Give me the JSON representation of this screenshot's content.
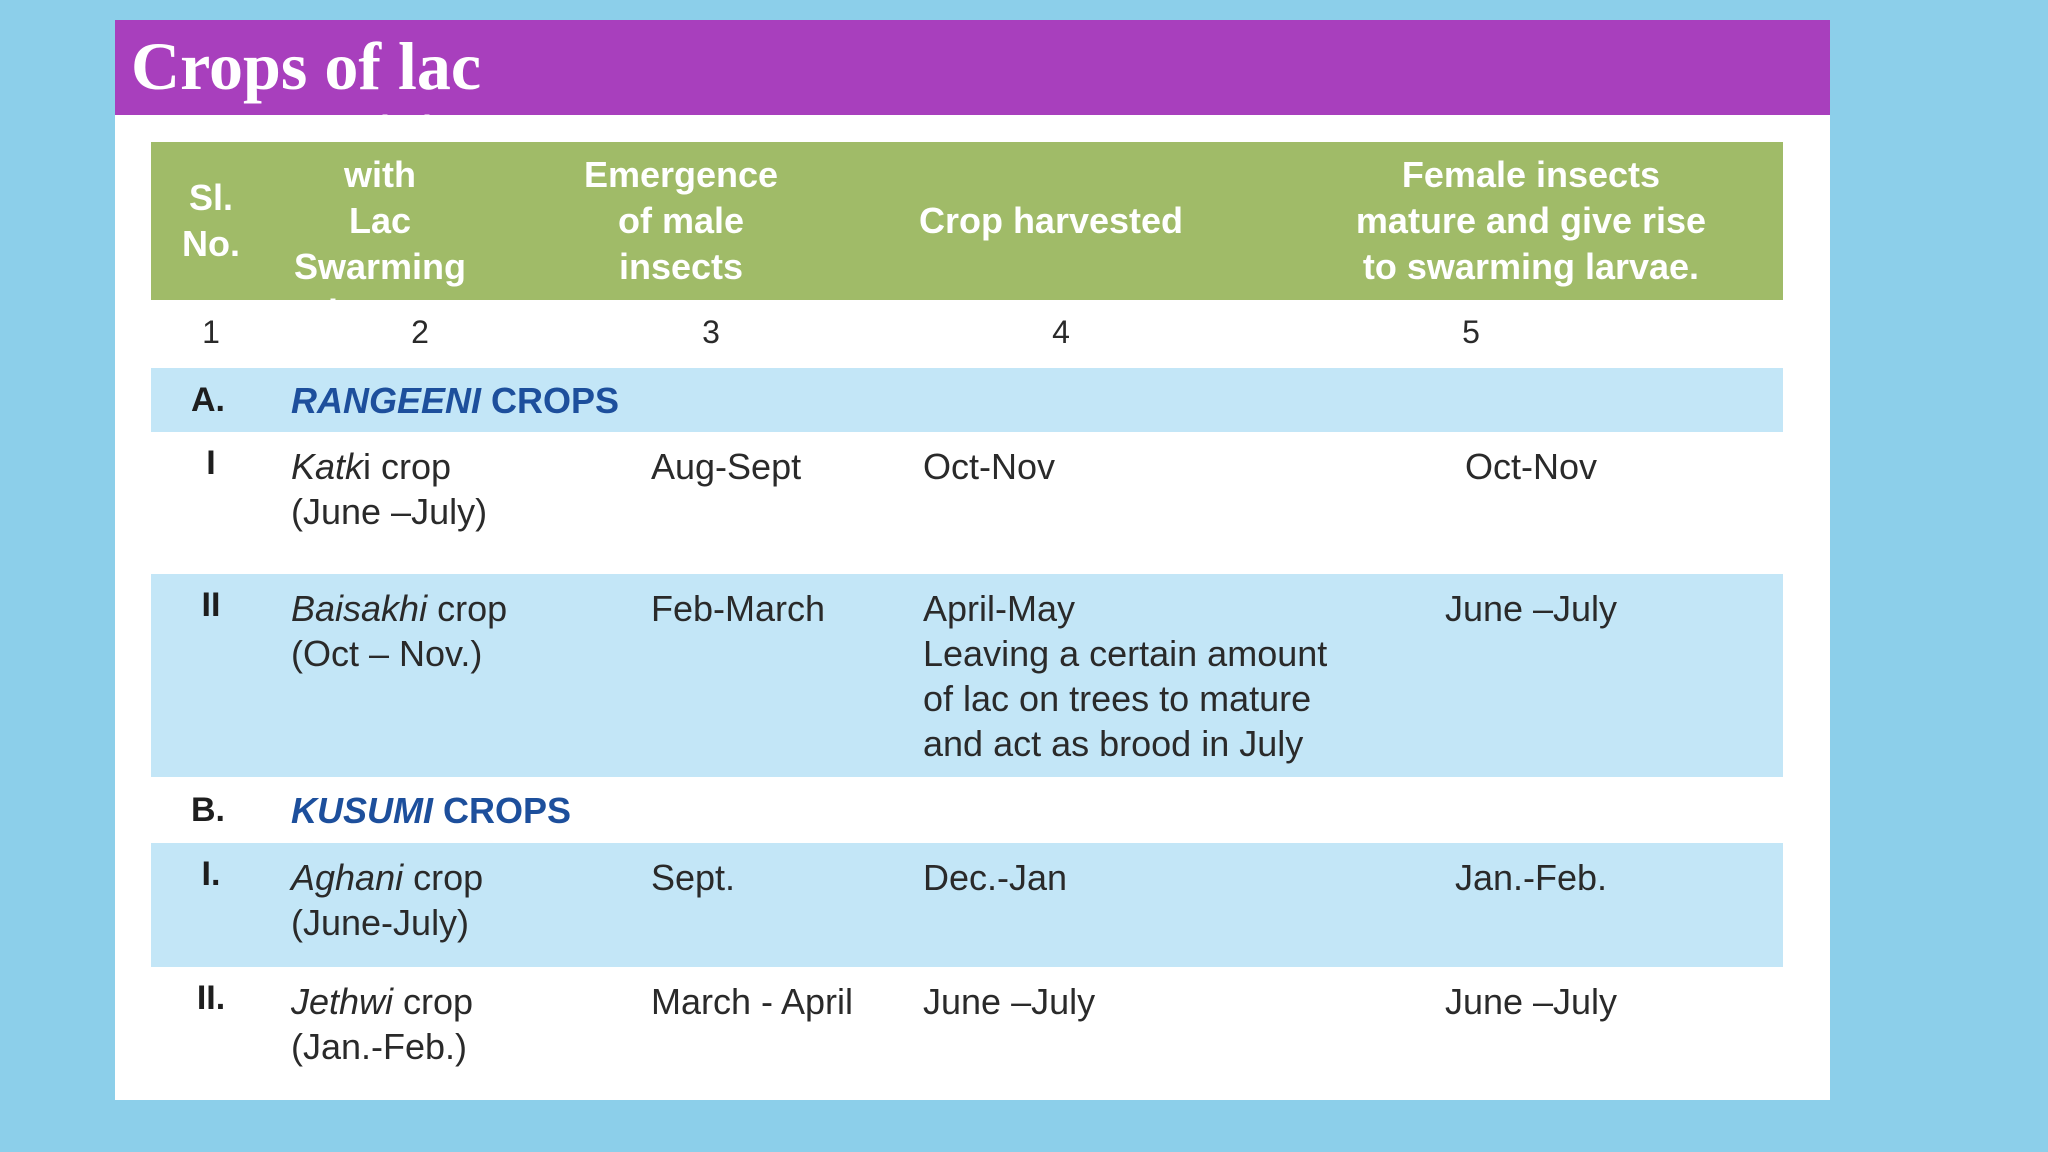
{
  "title": "Crops of lac",
  "colors": {
    "background": "#8ccfea",
    "title_bar": "#a83fbd",
    "header": "#a0bb68",
    "row_blue": "#c3e6f7",
    "section_text": "#1d4f9c"
  },
  "table": {
    "headers": [
      "Sl.\nNo.",
      "Inoculation with\nLac Swarming\nlarva .",
      "Emergence\nof male\ninsects",
      "Crop harvested",
      "Female insects\nmature and give rise\nto swarming larvae."
    ],
    "column_numbers": [
      "1",
      "2",
      "3",
      "4",
      "5"
    ],
    "sections": [
      {
        "letter": "A.",
        "name_italic": "RANGEENI",
        "name_rest": " CROPS",
        "rows": [
          {
            "sl": "I",
            "crop_italic": "Katk",
            "crop_rest": "i crop",
            "crop_period": " (June –July)",
            "emergence": "Aug-Sept",
            "harvested": "Oct-Nov",
            "female": "Oct-Nov"
          },
          {
            "sl": "II",
            "crop_italic": "Baisakhi",
            "crop_rest": " crop",
            "crop_period": "(Oct – Nov.)",
            "emergence": "Feb-March",
            "harvested": "April-May\nLeaving a certain amount\nof  lac on trees to mature\nand act as brood in July",
            "female": "June –July"
          }
        ]
      },
      {
        "letter": "B.",
        "name_italic": "KUSUMI",
        "name_rest": " CROPS",
        "rows": [
          {
            "sl": "I.",
            "crop_italic": "Aghani",
            "crop_rest": " crop",
            "crop_period": "(June-July)",
            "emergence": "Sept.",
            "harvested": "Dec.-Jan",
            "female": "Jan.-Feb."
          },
          {
            "sl": "II.",
            "crop_italic": "Jethwi",
            "crop_rest": " crop",
            "crop_period": "(Jan.-Feb.)",
            "emergence": "March - April",
            "harvested": "June –July",
            "female": "June –July"
          }
        ]
      }
    ]
  }
}
